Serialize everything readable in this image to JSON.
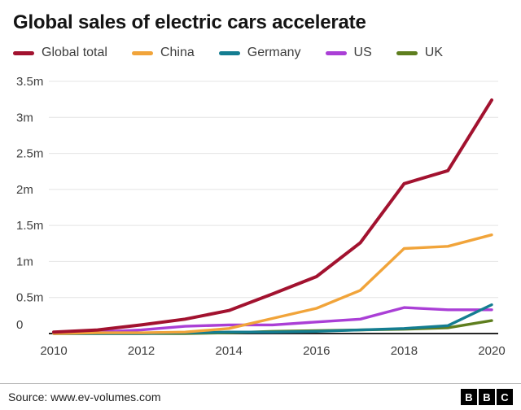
{
  "title": "Global sales of electric cars accelerate",
  "legend": [
    {
      "label": "Global total",
      "color": "#a2122f"
    },
    {
      "label": "China",
      "color": "#f1a43a"
    },
    {
      "label": "Germany",
      "color": "#147d91"
    },
    {
      "label": "US",
      "color": "#aa3fd6"
    },
    {
      "label": "UK",
      "color": "#5e7e1e"
    }
  ],
  "chart_data": {
    "type": "line",
    "title": "Global sales of electric cars accelerate",
    "xlabel": "",
    "ylabel": "",
    "x": [
      2010,
      2011,
      2012,
      2013,
      2014,
      2015,
      2016,
      2017,
      2018,
      2019,
      2020
    ],
    "series": [
      {
        "name": "Global total",
        "color": "#a2122f",
        "values": [
          0.02,
          0.05,
          0.12,
          0.2,
          0.32,
          0.55,
          0.79,
          1.26,
          2.08,
          2.26,
          3.24
        ]
      },
      {
        "name": "China",
        "color": "#f1a43a",
        "values": [
          0.0,
          0.01,
          0.01,
          0.02,
          0.07,
          0.21,
          0.35,
          0.6,
          1.18,
          1.21,
          1.37
        ]
      },
      {
        "name": "Germany",
        "color": "#147d91",
        "values": [
          0.0,
          0.0,
          0.0,
          0.01,
          0.02,
          0.02,
          0.03,
          0.05,
          0.07,
          0.11,
          0.4
        ]
      },
      {
        "name": "US",
        "color": "#aa3fd6",
        "values": [
          0.0,
          0.02,
          0.05,
          0.1,
          0.12,
          0.12,
          0.16,
          0.2,
          0.36,
          0.33,
          0.33
        ]
      },
      {
        "name": "UK",
        "color": "#5e7e1e",
        "values": [
          0.0,
          0.0,
          0.0,
          0.0,
          0.01,
          0.03,
          0.04,
          0.05,
          0.06,
          0.08,
          0.18
        ]
      }
    ],
    "ylim": [
      0,
      3.5
    ],
    "yticks": [
      {
        "value": 0,
        "label": "0"
      },
      {
        "value": 0.5,
        "label": "0.5m"
      },
      {
        "value": 1,
        "label": "1m"
      },
      {
        "value": 1.5,
        "label": "1.5m"
      },
      {
        "value": 2,
        "label": "2m"
      },
      {
        "value": 2.5,
        "label": "2.5m"
      },
      {
        "value": 3,
        "label": "3m"
      },
      {
        "value": 3.5,
        "label": "3.5m"
      }
    ],
    "xticks": [
      2010,
      2012,
      2014,
      2016,
      2018,
      2020
    ],
    "grid": true,
    "legend_position": "top"
  },
  "footer": {
    "source": "Source: www.ev-volumes.com",
    "logo_letters": [
      "B",
      "B",
      "C"
    ]
  }
}
